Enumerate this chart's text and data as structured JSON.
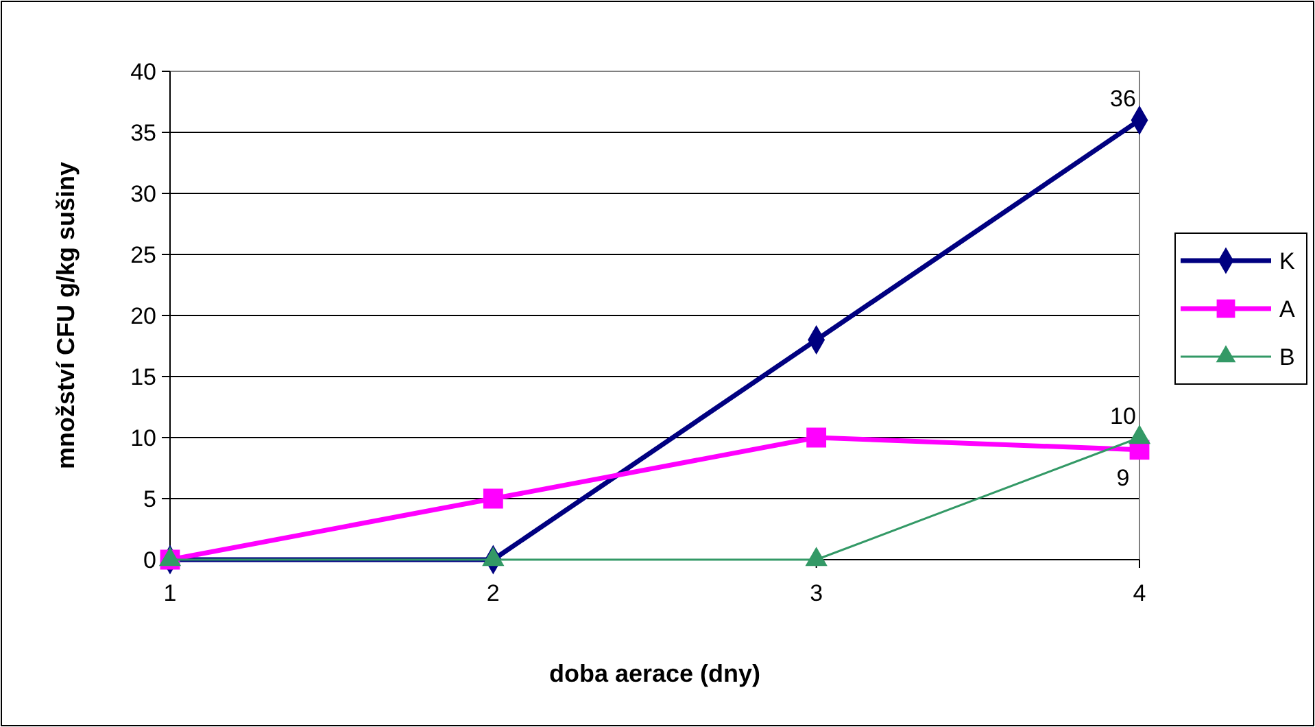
{
  "chart_data": {
    "type": "line",
    "xlabel": "doba aerace (dny)",
    "ylabel": "množství CFU g/kg sušiny",
    "x": [
      1,
      2,
      3,
      4
    ],
    "xlim": [
      1,
      4
    ],
    "xticks": [
      1,
      2,
      3,
      4
    ],
    "ylim": [
      0,
      40
    ],
    "yticks": [
      0,
      5,
      10,
      15,
      20,
      25,
      30,
      35,
      40
    ],
    "grid": "y",
    "legend": "right",
    "series": [
      {
        "name": "K",
        "color": "#000080",
        "marker": "diamond",
        "values": [
          0,
          0,
          18,
          36
        ],
        "value_labels": [
          null,
          null,
          null,
          "36"
        ]
      },
      {
        "name": "A",
        "color": "#ff00ff",
        "marker": "square",
        "values": [
          0,
          5,
          10,
          9
        ],
        "value_labels": [
          null,
          null,
          null,
          "9"
        ]
      },
      {
        "name": "B",
        "color": "#339966",
        "marker": "triangle",
        "values": [
          0,
          0,
          0,
          10
        ],
        "value_labels": [
          null,
          null,
          null,
          "10"
        ]
      }
    ]
  }
}
